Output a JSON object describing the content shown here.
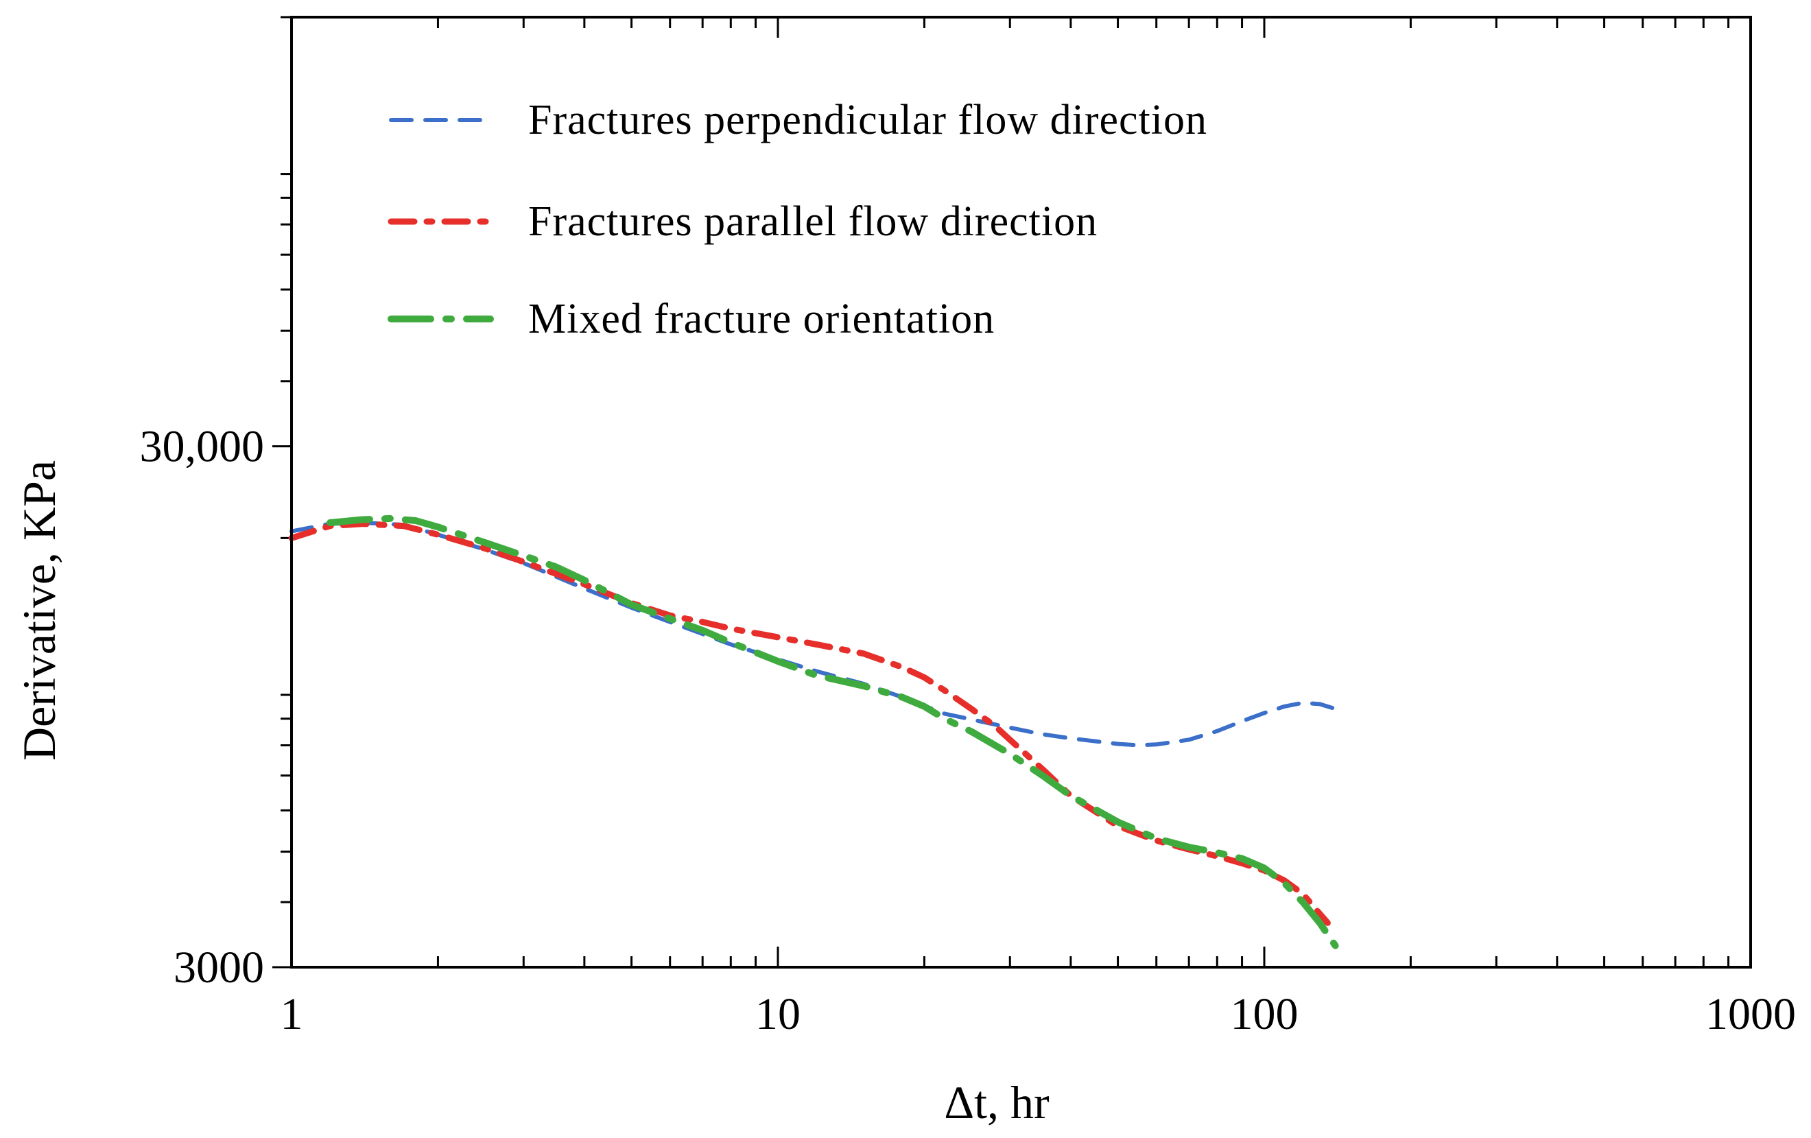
{
  "chart_data": {
    "type": "line",
    "title": "",
    "xlabel": "Δt, hr",
    "ylabel": "Derivative, KPa",
    "xscale": "log",
    "yscale": "log",
    "xlim": [
      1,
      1000
    ],
    "ylim": [
      3000,
      200000
    ],
    "xticks": [
      {
        "value": 1,
        "label": "1"
      },
      {
        "value": 10,
        "label": "10"
      },
      {
        "value": 100,
        "label": "100"
      },
      {
        "value": 1000,
        "label": "1000"
      }
    ],
    "yticks": [
      {
        "value": 3000,
        "label": "3000"
      },
      {
        "value": 30000,
        "label": "30,000"
      }
    ],
    "grid": false,
    "legend_position": "top-left",
    "series": [
      {
        "name": "Fractures perpendicular flow direction",
        "color": "#3b6fc9",
        "dash": "dashed",
        "x": [
          1,
          1.2,
          1.4,
          1.7,
          2,
          2.5,
          3,
          4,
          5,
          6,
          8,
          10,
          12,
          15,
          18,
          22,
          26,
          30,
          35,
          40,
          50,
          55,
          60,
          70,
          80,
          90,
          100,
          110,
          120,
          130,
          140
        ],
        "y": [
          20600,
          21300,
          21400,
          21200,
          20300,
          19000,
          17900,
          16000,
          14700,
          13800,
          12500,
          11700,
          11100,
          10500,
          9900,
          9200,
          8900,
          8650,
          8400,
          8250,
          8050,
          8000,
          8030,
          8200,
          8520,
          8900,
          9230,
          9500,
          9650,
          9600,
          9400
        ]
      },
      {
        "name": "Fractures parallel flow direction",
        "color": "#e62e2a",
        "dash": "dash-dot",
        "x": [
          1,
          1.2,
          1.4,
          1.7,
          2,
          2.5,
          3,
          4,
          5,
          6,
          7,
          8,
          10,
          12,
          15,
          18,
          20,
          22,
          25,
          28,
          30,
          35,
          40,
          50,
          60,
          70,
          80,
          90,
          100,
          110,
          120,
          130,
          135
        ],
        "y": [
          20000,
          21100,
          21300,
          21100,
          20300,
          19100,
          18000,
          16300,
          15000,
          14200,
          13800,
          13400,
          12900,
          12500,
          12000,
          11300,
          10800,
          10200,
          9400,
          8700,
          8200,
          7200,
          6400,
          5600,
          5250,
          5050,
          4900,
          4750,
          4600,
          4400,
          4150,
          3800,
          3650
        ]
      },
      {
        "name": "Mixed fracture orientation",
        "color": "#3fab3f",
        "dash": "long-dash-dot",
        "x": [
          1.2,
          1.4,
          1.6,
          1.8,
          2,
          2.5,
          3,
          3.5,
          4,
          5,
          6,
          7,
          8,
          10,
          12,
          15,
          18,
          20,
          22,
          25,
          30,
          35,
          40,
          50,
          60,
          70,
          80,
          90,
          100,
          110,
          120,
          130,
          140
        ],
        "y": [
          21400,
          21700,
          21800,
          21600,
          21000,
          19600,
          18500,
          17600,
          16600,
          14900,
          14000,
          13300,
          12600,
          11600,
          10900,
          10400,
          9900,
          9500,
          9000,
          8500,
          7700,
          7000,
          6400,
          5700,
          5300,
          5100,
          4980,
          4850,
          4650,
          4350,
          4000,
          3650,
          3300
        ]
      }
    ]
  }
}
